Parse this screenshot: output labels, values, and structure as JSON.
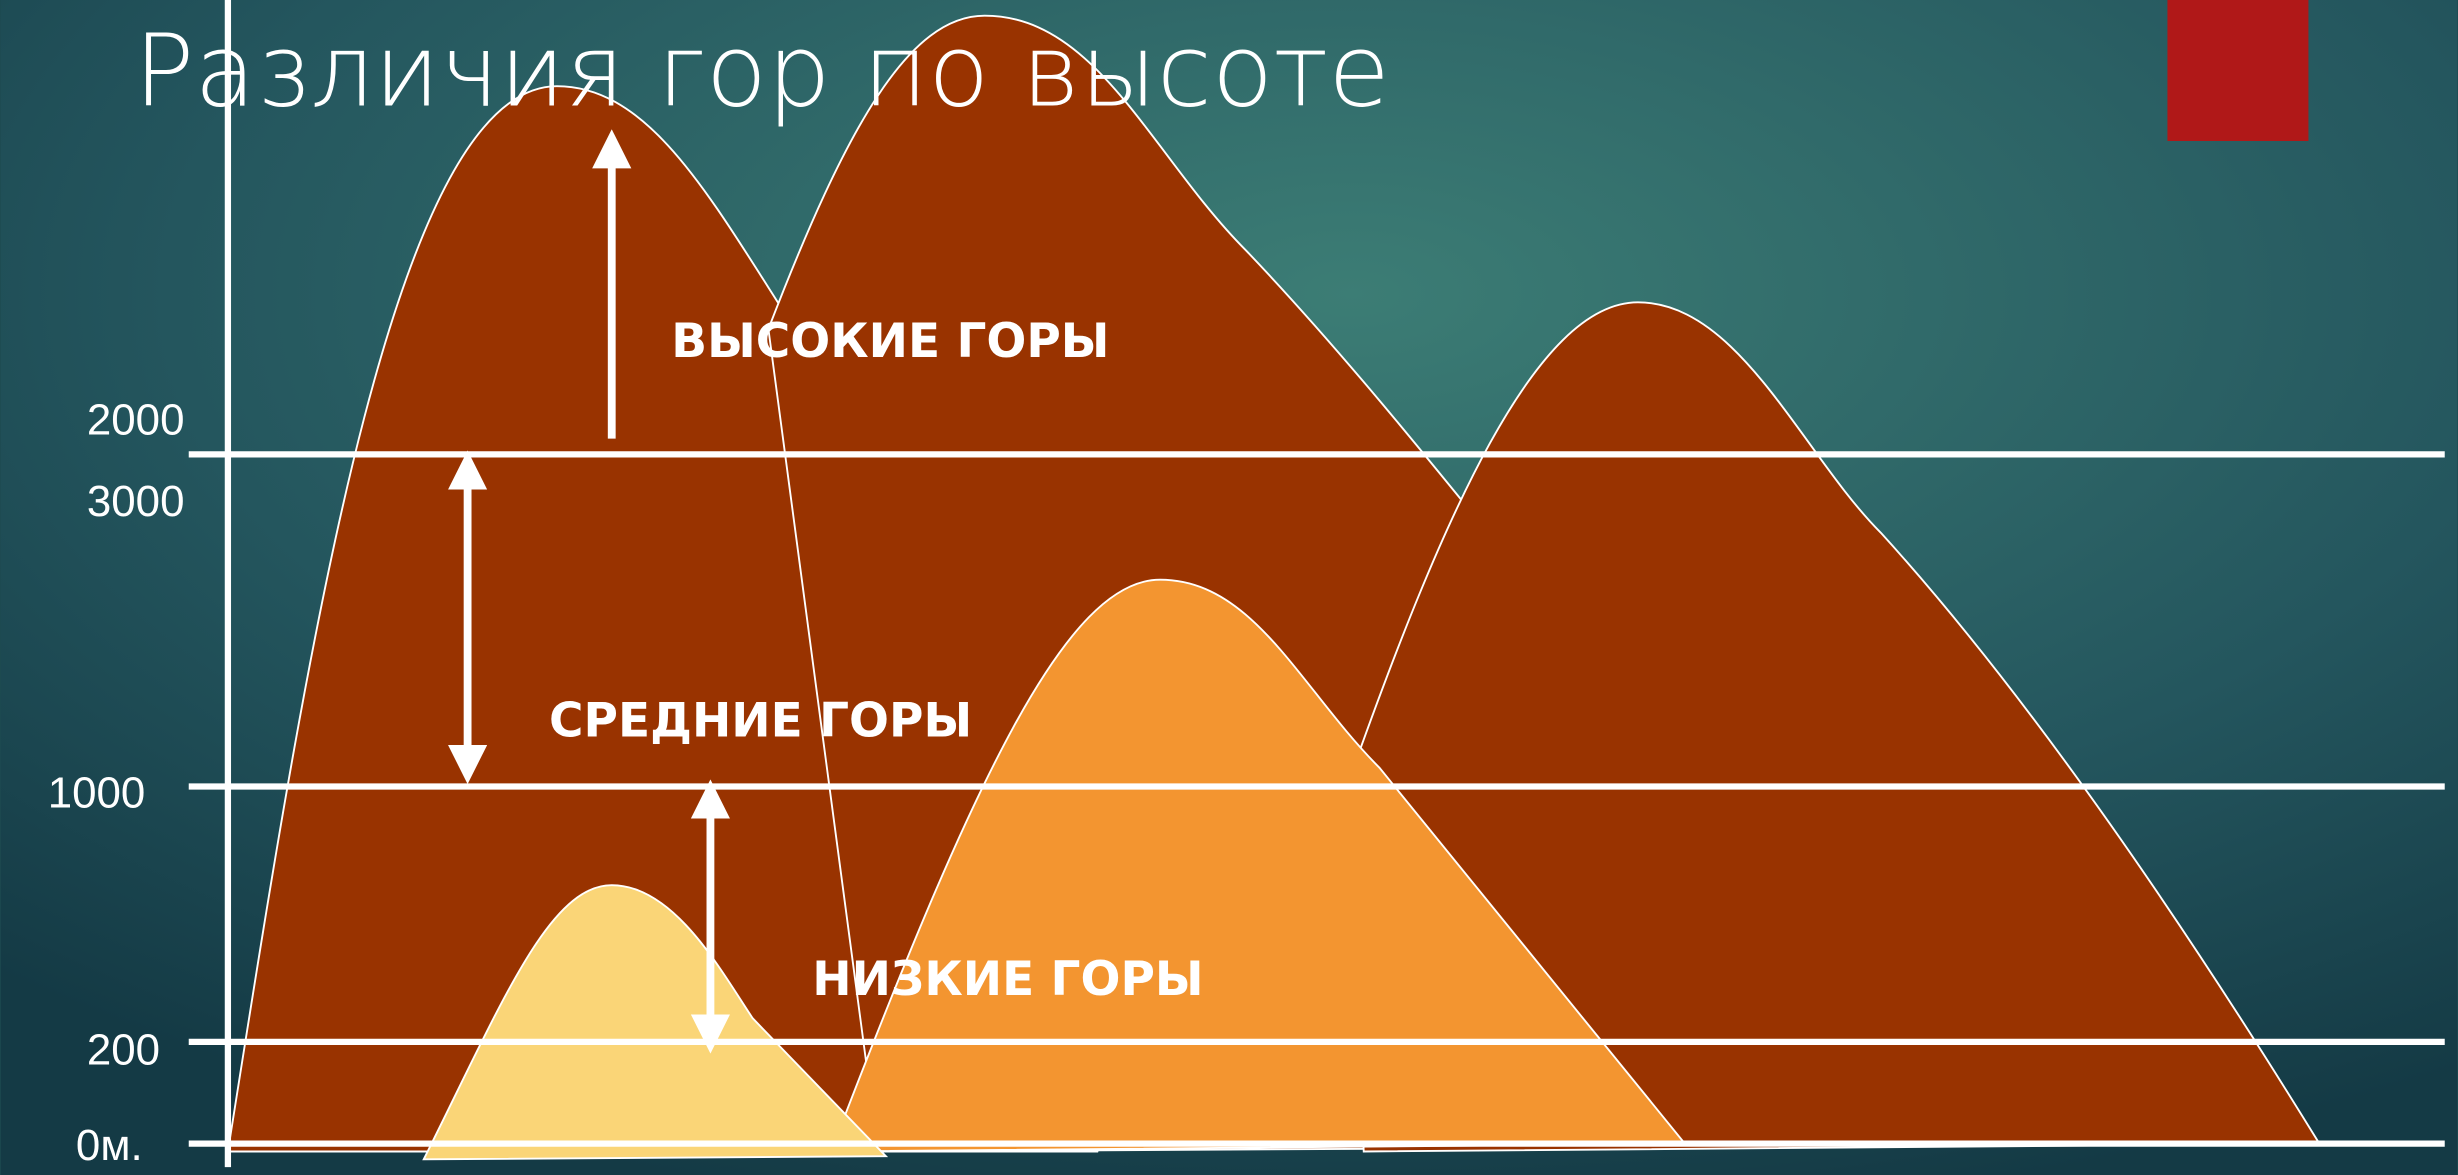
{
  "title": "Различия гор по высоте",
  "height_labels": [
    "2000",
    "3000",
    "1000",
    "200",
    "0м."
  ],
  "zones": [
    "ВЫСОКИЕ ГОРЫ",
    "СРЕДНИЕ ГОРЫ",
    "НИЗКИЕ ГОРЫ"
  ]
}
